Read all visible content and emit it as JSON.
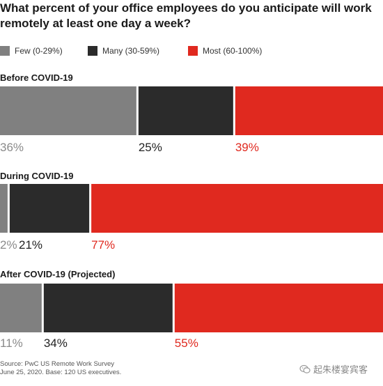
{
  "chart_data": {
    "type": "bar",
    "orientation": "horizontal-stacked",
    "title": "What percent of your office employees do you anticipate will work remotely at least one day a week?",
    "series": [
      {
        "name": "Few (0-29%)",
        "color": "#808080",
        "values": [
          36,
          2,
          11
        ]
      },
      {
        "name": "Many (30-59%)",
        "color": "#2b2b2b",
        "values": [
          25,
          21,
          34
        ]
      },
      {
        "name": "Most (60-100%)",
        "color": "#e0291f",
        "values": [
          39,
          77,
          55
        ]
      }
    ],
    "categories": [
      "Before COVID-19",
      "During COVID-19",
      "After COVID-19 (Projected)"
    ],
    "value_labels": [
      [
        "36%",
        "25%",
        "39%"
      ],
      [
        "2%",
        "21%",
        "77%"
      ],
      [
        "11%",
        "34%",
        "55%"
      ]
    ],
    "legend_position": "top-left"
  },
  "source": {
    "line1": "Source: PwC US Remote Work Survey",
    "line2": "June 25, 2020. Base: 120 US executives."
  },
  "watermark": {
    "text": "起朱楼宴宾客",
    "icon": "wechat-icon"
  }
}
